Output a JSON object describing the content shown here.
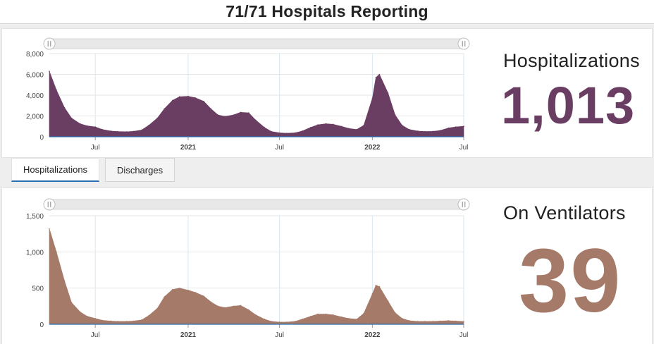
{
  "header": {
    "title": "71/71 Hospitals Reporting"
  },
  "tabs": [
    {
      "label": "Hospitalizations",
      "active": true
    },
    {
      "label": "Discharges",
      "active": false
    }
  ],
  "stats": {
    "hospitalizations": {
      "label": "Hospitalizations",
      "value": "1,013",
      "color": "#6a3d63"
    },
    "ventilators": {
      "label": "On Ventilators",
      "value": "39",
      "color": "#a57a69"
    }
  },
  "chart_data": [
    {
      "type": "area",
      "name": "Hospitalizations",
      "color": "#6a3d63",
      "ylim": [
        0,
        8000
      ],
      "yticks": [
        0,
        2000,
        4000,
        6000,
        8000
      ],
      "ytick_labels": [
        "0",
        "2,000",
        "4,000",
        "6,000",
        "8,000"
      ],
      "xrange": [
        "2020-04-01",
        "2022-07-01"
      ],
      "xticks": [
        {
          "date": "2020-07-01",
          "label": "Jul",
          "bold": false
        },
        {
          "date": "2021-01-01",
          "label": "2021",
          "bold": true
        },
        {
          "date": "2021-07-01",
          "label": "Jul",
          "bold": false
        },
        {
          "date": "2022-01-01",
          "label": "2022",
          "bold": true
        },
        {
          "date": "2022-07-01",
          "label": "Jul",
          "bold": false
        }
      ],
      "x": [
        "2020-04-01",
        "2020-04-15",
        "2020-05-01",
        "2020-05-15",
        "2020-06-01",
        "2020-06-15",
        "2020-07-01",
        "2020-07-15",
        "2020-08-01",
        "2020-08-15",
        "2020-09-01",
        "2020-09-15",
        "2020-10-01",
        "2020-10-15",
        "2020-11-01",
        "2020-11-15",
        "2020-12-01",
        "2020-12-15",
        "2021-01-01",
        "2021-01-15",
        "2021-02-01",
        "2021-02-15",
        "2021-03-01",
        "2021-03-15",
        "2021-04-01",
        "2021-04-15",
        "2021-05-01",
        "2021-05-15",
        "2021-06-01",
        "2021-06-15",
        "2021-07-01",
        "2021-07-15",
        "2021-08-01",
        "2021-08-15",
        "2021-09-01",
        "2021-09-15",
        "2021-10-01",
        "2021-10-15",
        "2021-11-01",
        "2021-11-15",
        "2021-12-01",
        "2021-12-15",
        "2022-01-01",
        "2022-01-08",
        "2022-01-15",
        "2022-02-01",
        "2022-02-15",
        "2022-03-01",
        "2022-03-15",
        "2022-04-01",
        "2022-04-15",
        "2022-05-01",
        "2022-05-15",
        "2022-06-01",
        "2022-06-15",
        "2022-07-01"
      ],
      "values": [
        6300,
        4500,
        2800,
        1800,
        1250,
        1050,
        950,
        700,
        550,
        500,
        480,
        520,
        650,
        1100,
        1800,
        2700,
        3500,
        3850,
        3900,
        3750,
        3400,
        2700,
        2100,
        1950,
        2100,
        2350,
        2300,
        1600,
        900,
        500,
        380,
        330,
        380,
        550,
        900,
        1150,
        1250,
        1200,
        1000,
        800,
        700,
        1100,
        3700,
        5700,
        6000,
        4200,
        2100,
        1100,
        700,
        550,
        500,
        520,
        600,
        850,
        950,
        1013
      ]
    },
    {
      "type": "area",
      "name": "On Ventilators",
      "color": "#a57a69",
      "ylim": [
        0,
        1500
      ],
      "yticks": [
        0,
        500,
        1000,
        1500
      ],
      "ytick_labels": [
        "0",
        "500",
        "1,000",
        "1,500"
      ],
      "xrange": [
        "2020-04-01",
        "2022-07-01"
      ],
      "xticks": [
        {
          "date": "2020-07-01",
          "label": "Jul",
          "bold": false
        },
        {
          "date": "2021-01-01",
          "label": "2021",
          "bold": true
        },
        {
          "date": "2021-07-01",
          "label": "Jul",
          "bold": false
        },
        {
          "date": "2022-01-01",
          "label": "2022",
          "bold": true
        },
        {
          "date": "2022-07-01",
          "label": "Jul",
          "bold": false
        }
      ],
      "x": [
        "2020-04-01",
        "2020-04-15",
        "2020-05-01",
        "2020-05-15",
        "2020-06-01",
        "2020-06-15",
        "2020-07-01",
        "2020-07-15",
        "2020-08-01",
        "2020-08-15",
        "2020-09-01",
        "2020-09-15",
        "2020-10-01",
        "2020-10-15",
        "2020-11-01",
        "2020-11-15",
        "2020-12-01",
        "2020-12-15",
        "2021-01-01",
        "2021-01-15",
        "2021-02-01",
        "2021-02-15",
        "2021-03-01",
        "2021-03-15",
        "2021-04-01",
        "2021-04-15",
        "2021-05-01",
        "2021-05-15",
        "2021-06-01",
        "2021-06-15",
        "2021-07-01",
        "2021-07-15",
        "2021-08-01",
        "2021-08-15",
        "2021-09-01",
        "2021-09-15",
        "2021-10-01",
        "2021-10-15",
        "2021-11-01",
        "2021-11-15",
        "2021-12-01",
        "2021-12-15",
        "2022-01-01",
        "2022-01-08",
        "2022-01-15",
        "2022-02-01",
        "2022-02-15",
        "2022-03-01",
        "2022-03-15",
        "2022-04-01",
        "2022-04-15",
        "2022-05-01",
        "2022-05-15",
        "2022-06-01",
        "2022-06-15",
        "2022-07-01"
      ],
      "values": [
        1320,
        1000,
        600,
        300,
        170,
        110,
        80,
        55,
        45,
        40,
        40,
        45,
        60,
        120,
        220,
        380,
        480,
        500,
        470,
        440,
        390,
        310,
        250,
        230,
        250,
        260,
        200,
        130,
        70,
        40,
        30,
        30,
        40,
        70,
        110,
        140,
        140,
        130,
        100,
        80,
        70,
        150,
        420,
        540,
        520,
        320,
        160,
        80,
        50,
        40,
        40,
        40,
        45,
        50,
        45,
        39
      ]
    }
  ]
}
